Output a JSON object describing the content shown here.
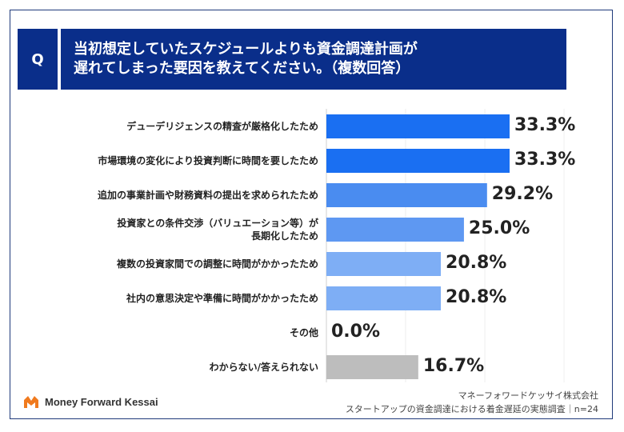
{
  "header": {
    "q_label": "Q",
    "title_line1": "当初想定していたスケジュールよりも資金調達計画が",
    "title_line2": "遅れてしまった要因を教えてください。（複数回答）"
  },
  "chart_data": {
    "type": "bar",
    "orientation": "horizontal",
    "xlim": [
      0,
      50
    ],
    "categories": [
      "デューデリジェンスの精査が厳格化したため",
      "市場環境の変化により投資判断に時間を要したため",
      "追加の事業計画や財務資料の提出を求められたため",
      "投資家との条件交渉（バリュエーション等）が\n長期化したため",
      "複数の投資家間での調整に時間がかかったため",
      "社内の意思決定や準備に時間がかかったため",
      "その他",
      "わからない/答えられない"
    ],
    "values": [
      33.3,
      33.3,
      29.2,
      25.0,
      20.8,
      20.8,
      0.0,
      16.7
    ],
    "labels": [
      "33.3%",
      "33.3%",
      "29.2%",
      "25.0%",
      "20.8%",
      "20.8%",
      "0.0%",
      "16.7%"
    ],
    "colors": [
      "#1a6ff2",
      "#1a6ff2",
      "#4a8cf0",
      "#5e98f2",
      "#7eaef5",
      "#7eaef5",
      "#7eaef5",
      "#bdbdbd"
    ]
  },
  "footer": {
    "logo_text": "Money Forward Kessai",
    "company": "マネーフォワードケッサイ株式会社",
    "survey": "スタートアップの資金調達における着金遅延の実態調査｜n=24"
  }
}
